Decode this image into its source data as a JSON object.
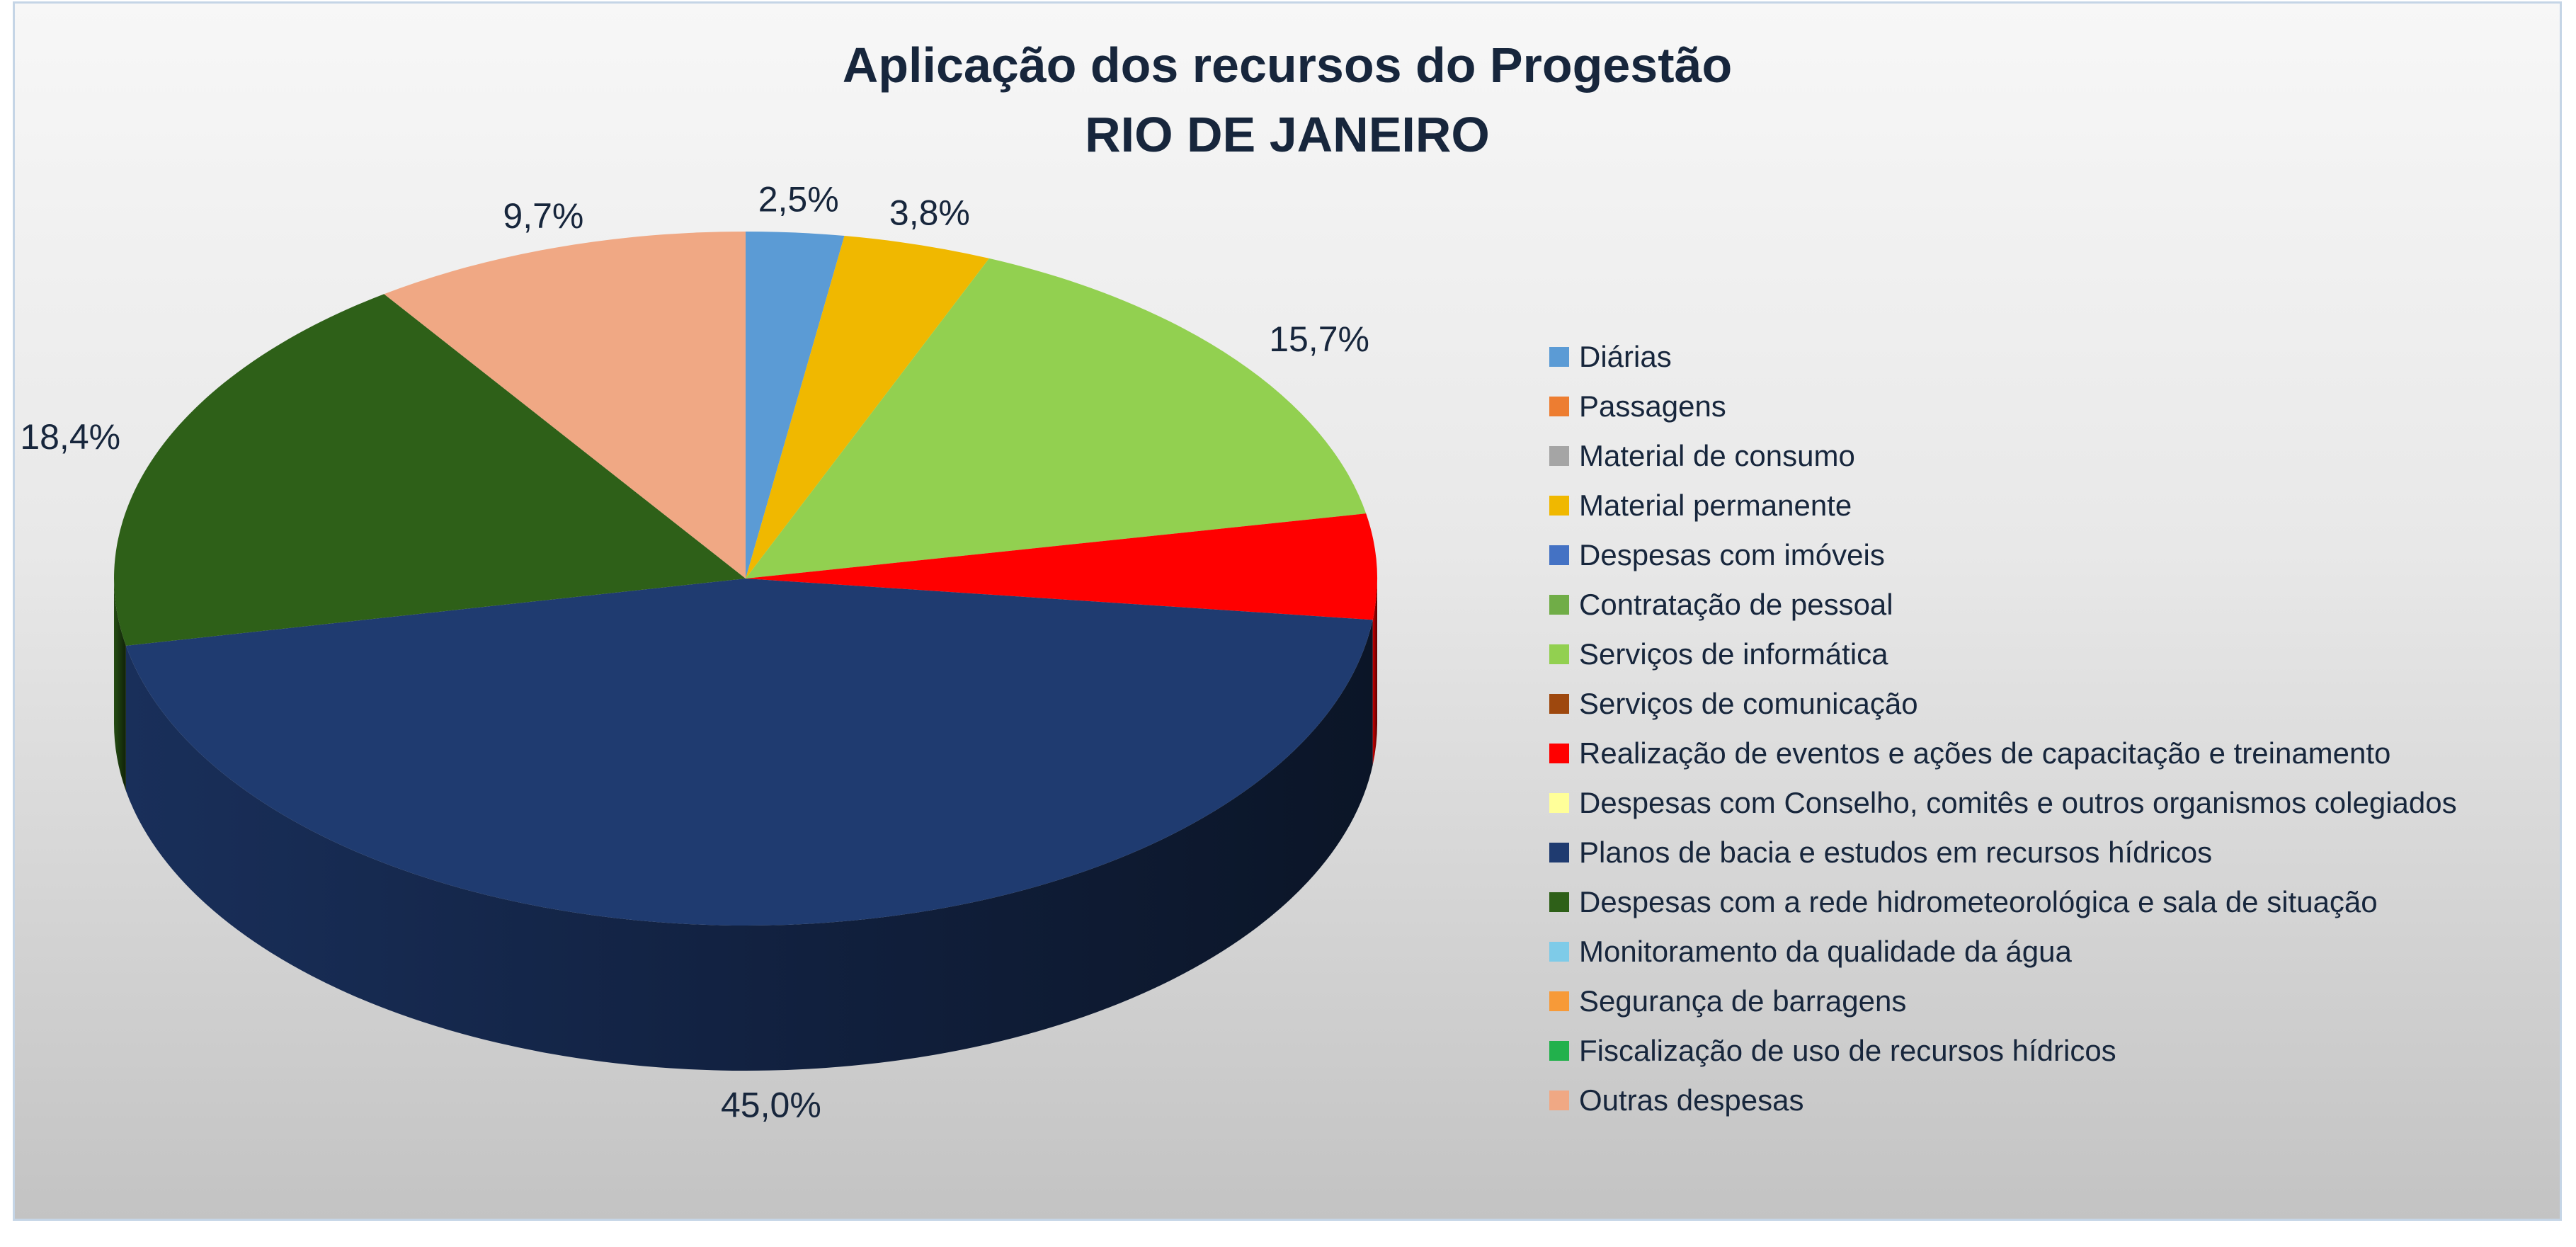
{
  "chart_data": {
    "type": "pie",
    "title": "Aplicação dos recursos do Progestão",
    "subtitle": "RIO DE JANEIRO",
    "legend_position": "right",
    "slices": [
      {
        "name": "Diárias",
        "value": 2.5,
        "label": "2,5%",
        "color": "#5b9bd5"
      },
      {
        "name": "Passagens",
        "value": 0,
        "label": "",
        "color": "#ed7d31"
      },
      {
        "name": "Material de consumo",
        "value": 0,
        "label": "",
        "color": "#a5a5a5"
      },
      {
        "name": "Material permanente",
        "value": 3.8,
        "label": "3,8%",
        "color": "#f0b800"
      },
      {
        "name": "Despesas com imóveis",
        "value": 0,
        "label": "",
        "color": "#4472c4"
      },
      {
        "name": "Contratação de pessoal",
        "value": 0,
        "label": "",
        "color": "#70ad47"
      },
      {
        "name": "Serviços de informática",
        "value": 15.7,
        "label": "15,7%",
        "color": "#92d050"
      },
      {
        "name": "Serviços de comunicação",
        "value": 0,
        "label": "",
        "color": "#9e480e"
      },
      {
        "name": "Realização de eventos e ações de capacitação e treinamento",
        "value": 4.9,
        "label": "",
        "color": "#ff0000"
      },
      {
        "name": "Despesas com Conselho, comitês e outros organismos colegiados",
        "value": 0,
        "label": "",
        "color": "#ffff99"
      },
      {
        "name": "Planos de bacia e estudos em recursos hídricos",
        "value": 45.0,
        "label": "45,0%",
        "color": "#1f3b70"
      },
      {
        "name": "Despesas com a rede hidrometeorológica e sala de situação",
        "value": 18.4,
        "label": "18,4%",
        "color": "#2e6018"
      },
      {
        "name": "Monitoramento da qualidade da água",
        "value": 0,
        "label": "",
        "color": "#7ecbe8"
      },
      {
        "name": "Segurança de barragens",
        "value": 0,
        "label": "",
        "color": "#f79a38"
      },
      {
        "name": "Fiscalização de uso de recursos hídricos",
        "value": 0,
        "label": "",
        "color": "#22b14c"
      },
      {
        "name": "Outras despesas",
        "value": 9.7,
        "label": "9,7%",
        "color": "#f0a884"
      }
    ]
  }
}
